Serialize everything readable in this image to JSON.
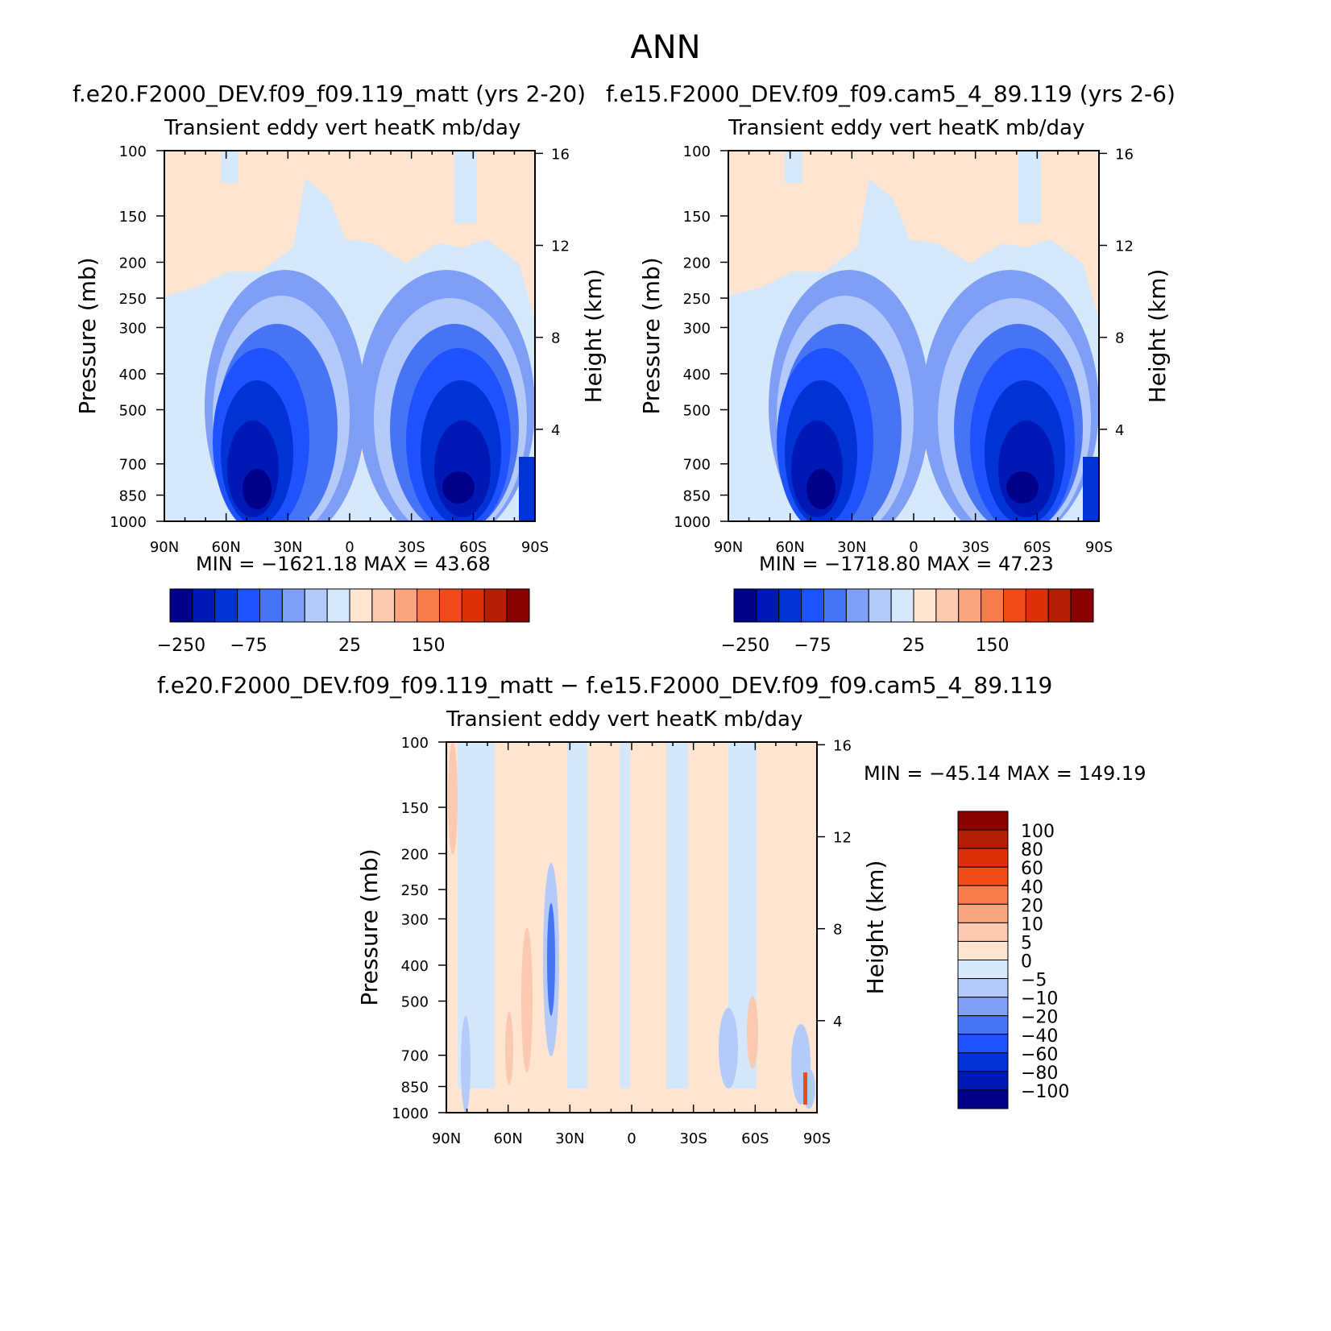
{
  "page_title": "ANN",
  "chart_data": [
    {
      "type": "heatmap",
      "title": "f.e20.F2000_DEV.f09_f09.119_matt (yrs 2-20)",
      "subtitle": "Transient eddy vert heatK mb/day",
      "xlabel": "",
      "ylabel": "Pressure (mb)",
      "ylabel_right": "Height (km)",
      "x_ticks": [
        "90N",
        "60N",
        "30N",
        "0",
        "30S",
        "60S",
        "90S"
      ],
      "y_ticks": [
        100,
        150,
        200,
        250,
        300,
        400,
        500,
        700,
        850,
        1000
      ],
      "y_ticks_right": [
        4,
        8,
        12,
        16
      ],
      "y_scale": "log",
      "ylim": [
        1000,
        100
      ],
      "xlim": [
        90,
        -90
      ],
      "stats": "MIN = −1621.18   MAX =   43.68",
      "min": -1621.18,
      "max": 43.68,
      "colorbar_labels": [
        "−250",
        "−75",
        "25",
        "150"
      ],
      "colorbar_orientation": "horizontal"
    },
    {
      "type": "heatmap",
      "title": "f.e15.F2000_DEV.f09_f09.cam5_4_89.119 (yrs 2-6)",
      "subtitle": "Transient eddy vert heatK mb/day",
      "xlabel": "",
      "ylabel": "Pressure (mb)",
      "ylabel_right": "Height (km)",
      "x_ticks": [
        "90N",
        "60N",
        "30N",
        "0",
        "30S",
        "60S",
        "90S"
      ],
      "y_ticks": [
        100,
        150,
        200,
        250,
        300,
        400,
        500,
        700,
        850,
        1000
      ],
      "y_ticks_right": [
        4,
        8,
        12,
        16
      ],
      "y_scale": "log",
      "ylim": [
        1000,
        100
      ],
      "xlim": [
        90,
        -90
      ],
      "stats": "MIN = −1718.80   MAX =   47.23",
      "min": -1718.8,
      "max": 47.23,
      "colorbar_labels": [
        "−250",
        "−75",
        "25",
        "150"
      ],
      "colorbar_orientation": "horizontal"
    },
    {
      "type": "heatmap",
      "title": "f.e20.F2000_DEV.f09_f09.119_matt − f.e15.F2000_DEV.f09_f09.cam5_4_89.119",
      "subtitle": "Transient eddy vert heatK mb/day",
      "xlabel": "",
      "ylabel": "Pressure (mb)",
      "ylabel_right": "Height (km)",
      "x_ticks": [
        "90N",
        "60N",
        "30N",
        "0",
        "30S",
        "60S",
        "90S"
      ],
      "y_ticks": [
        100,
        150,
        200,
        250,
        300,
        400,
        500,
        700,
        850,
        1000
      ],
      "y_ticks_right": [
        4,
        8,
        12,
        16
      ],
      "y_scale": "log",
      "ylim": [
        1000,
        100
      ],
      "xlim": [
        90,
        -90
      ],
      "stats": "MIN = −45.14   MAX = 149.19",
      "min": -45.14,
      "max": 149.19,
      "colorbar_labels": [
        "100",
        "80",
        "60",
        "40",
        "20",
        "10",
        "5",
        "0",
        "−5",
        "−10",
        "−20",
        "−40",
        "−60",
        "−80",
        "−100"
      ],
      "colorbar_orientation": "vertical"
    }
  ],
  "colors": {
    "palette": [
      "#00008b",
      "#0019b4",
      "#0033d6",
      "#1e52ff",
      "#4773f5",
      "#7f9ff7",
      "#b4cbfa",
      "#d6e8fb",
      "#fde5d1",
      "#fbc9b0",
      "#f9a57f",
      "#f77b4d",
      "#f24a18",
      "#db300a",
      "#b31e05",
      "#8b0000"
    ],
    "neutral_neg": "#d5e7fb",
    "neutral_pos": "#fde5d2"
  }
}
